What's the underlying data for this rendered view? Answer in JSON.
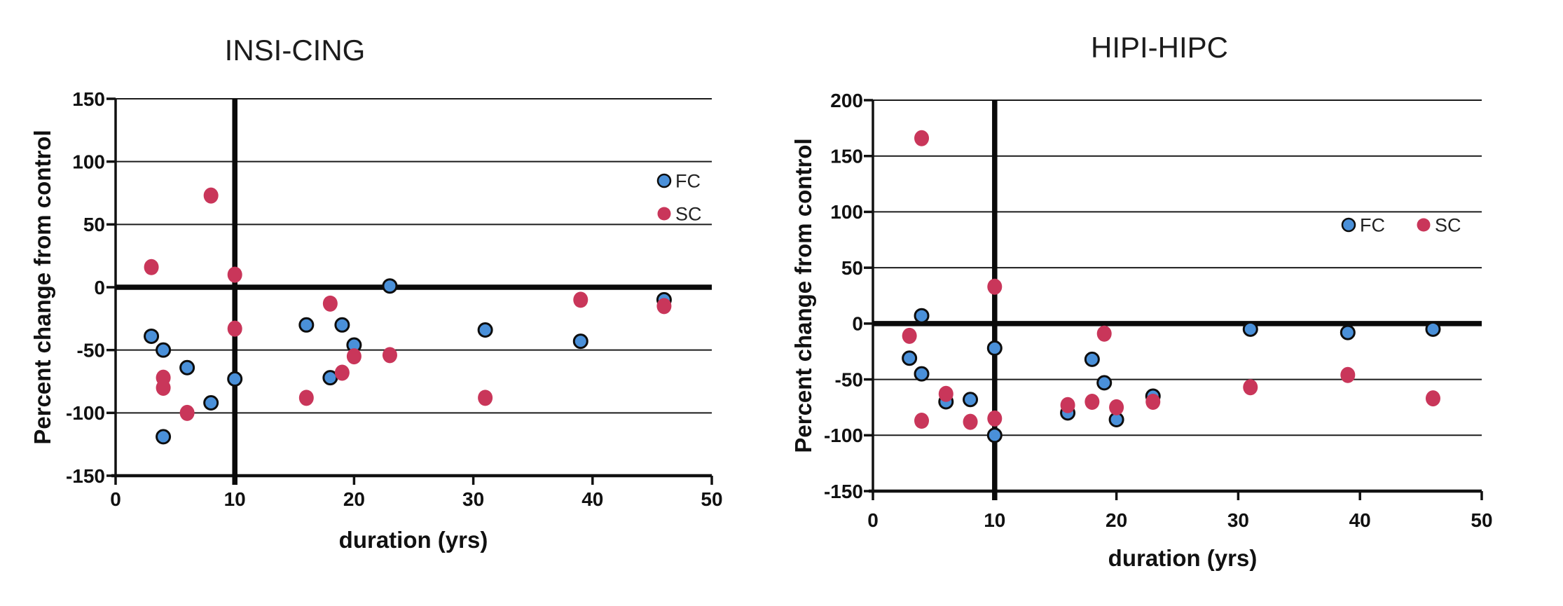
{
  "figure": {
    "name": "percent-change-vs-duration-scatter-figure",
    "background": "#ffffff",
    "series_colors": {
      "FC": "#4a90d9",
      "SC": "#c9365a"
    },
    "point_outline_color": "#0d0d0d"
  },
  "chart_data": [
    {
      "type": "scatter",
      "title": "INSI-CING",
      "xlabel": "duration (yrs)",
      "ylabel": "Percent change from control",
      "xlim": [
        0,
        50
      ],
      "ylim": [
        -150,
        150
      ],
      "xticks": [
        0,
        10,
        20,
        30,
        40,
        50
      ],
      "yticks": [
        150,
        100,
        50,
        0,
        -50,
        -100,
        -150
      ],
      "grid": true,
      "reference_lines": {
        "vertical_x": 10,
        "horizontal_y": 0
      },
      "legend_position": "upper right, stacked vertically",
      "series": [
        {
          "name": "FC",
          "color": "#4a90d9",
          "outlined": true,
          "points": [
            [
              3,
              -39
            ],
            [
              4,
              -50
            ],
            [
              4,
              -119
            ],
            [
              6,
              -64
            ],
            [
              8,
              -92
            ],
            [
              10,
              -73
            ],
            [
              16,
              -30
            ],
            [
              18,
              -72
            ],
            [
              19,
              -30
            ],
            [
              20,
              -46
            ],
            [
              23,
              1
            ],
            [
              31,
              -34
            ],
            [
              39,
              -43
            ],
            [
              46,
              -10
            ]
          ]
        },
        {
          "name": "SC",
          "color": "#c9365a",
          "outlined": false,
          "points": [
            [
              3,
              16
            ],
            [
              4,
              -72
            ],
            [
              4,
              -80
            ],
            [
              6,
              -100
            ],
            [
              8,
              73
            ],
            [
              10,
              10
            ],
            [
              10,
              -33
            ],
            [
              16,
              -88
            ],
            [
              18,
              -13
            ],
            [
              19,
              -68
            ],
            [
              20,
              -55
            ],
            [
              23,
              -54
            ],
            [
              31,
              -88
            ],
            [
              39,
              -10
            ],
            [
              46,
              -15
            ]
          ]
        }
      ]
    },
    {
      "type": "scatter",
      "title": "HIPI-HIPC",
      "xlabel": "duration (yrs)",
      "ylabel": "Percent change from control",
      "xlim": [
        0,
        50
      ],
      "ylim": [
        -150,
        200
      ],
      "xticks": [
        0,
        10,
        20,
        30,
        40,
        50
      ],
      "yticks": [
        200,
        150,
        100,
        50,
        0,
        -50,
        -100,
        -150
      ],
      "grid": true,
      "reference_lines": {
        "vertical_x": 10,
        "horizontal_y": 0
      },
      "legend_position": "middle right, horizontal",
      "series": [
        {
          "name": "FC",
          "color": "#4a90d9",
          "outlined": true,
          "points": [
            [
              3,
              -31
            ],
            [
              4,
              7
            ],
            [
              4,
              -45
            ],
            [
              6,
              -70
            ],
            [
              8,
              -68
            ],
            [
              10,
              -22
            ],
            [
              10,
              -100
            ],
            [
              16,
              -80
            ],
            [
              18,
              -32
            ],
            [
              19,
              -53
            ],
            [
              20,
              -86
            ],
            [
              23,
              -65
            ],
            [
              31,
              -5
            ],
            [
              39,
              -8
            ],
            [
              46,
              -5
            ]
          ]
        },
        {
          "name": "SC",
          "color": "#c9365a",
          "outlined": false,
          "points": [
            [
              3,
              -11
            ],
            [
              4,
              166
            ],
            [
              4,
              -87
            ],
            [
              6,
              -63
            ],
            [
              8,
              -88
            ],
            [
              10,
              33
            ],
            [
              10,
              -85
            ],
            [
              16,
              -73
            ],
            [
              18,
              -70
            ],
            [
              19,
              -9
            ],
            [
              20,
              -75
            ],
            [
              23,
              -70
            ],
            [
              31,
              -57
            ],
            [
              39,
              -46
            ],
            [
              46,
              -67
            ]
          ]
        }
      ]
    }
  ]
}
